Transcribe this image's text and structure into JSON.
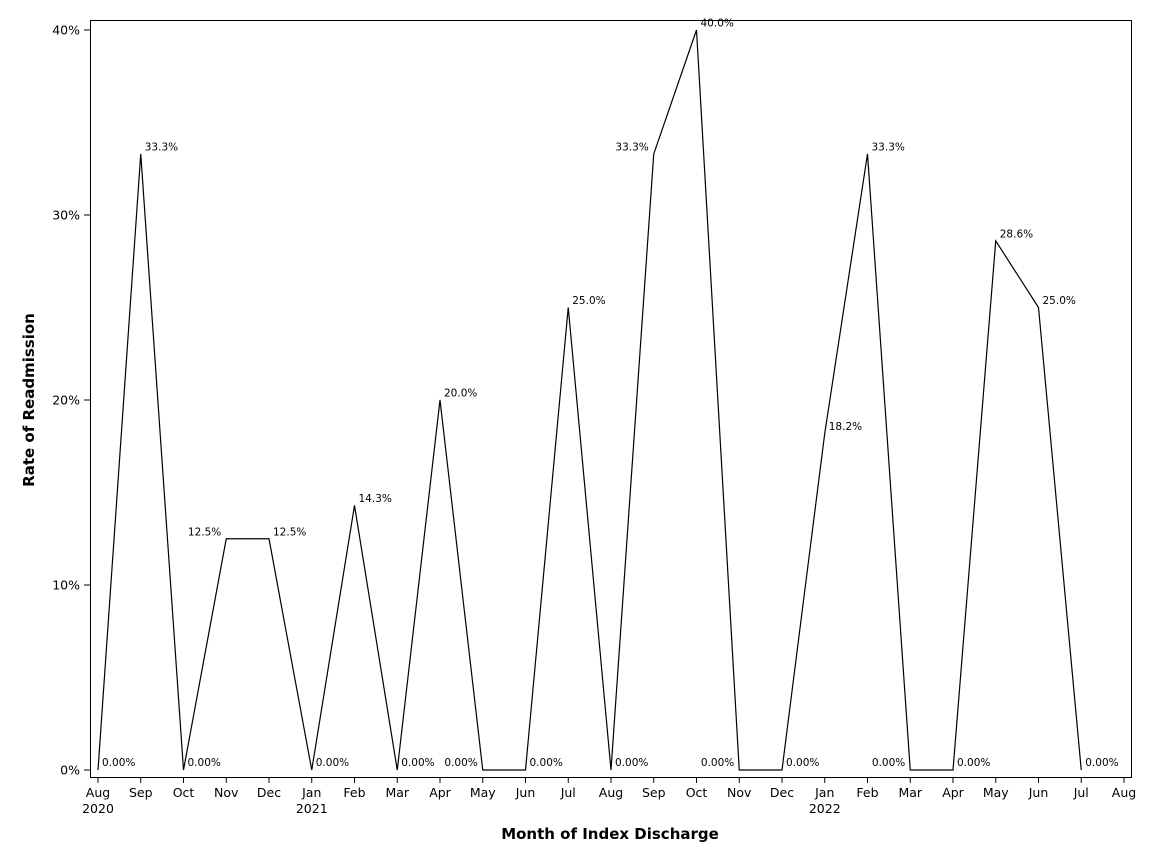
{
  "chart_data": {
    "type": "line",
    "xlabel": "Month of Index Discharge",
    "ylabel": "Rate of Readmission",
    "ylim": [
      0,
      40
    ],
    "y_ticks": [
      0,
      10,
      20,
      30,
      40
    ],
    "y_tick_labels": [
      "0%",
      "10%",
      "20%",
      "30%",
      "40%"
    ],
    "x_tick_labels": [
      {
        "month": "Aug",
        "year": "2020"
      },
      {
        "month": "Sep",
        "year": ""
      },
      {
        "month": "Oct",
        "year": ""
      },
      {
        "month": "Nov",
        "year": ""
      },
      {
        "month": "Dec",
        "year": ""
      },
      {
        "month": "Jan",
        "year": "2021"
      },
      {
        "month": "Feb",
        "year": ""
      },
      {
        "month": "Mar",
        "year": ""
      },
      {
        "month": "Apr",
        "year": ""
      },
      {
        "month": "May",
        "year": ""
      },
      {
        "month": "Jun",
        "year": ""
      },
      {
        "month": "Jul",
        "year": ""
      },
      {
        "month": "Aug",
        "year": ""
      },
      {
        "month": "Sep",
        "year": ""
      },
      {
        "month": "Oct",
        "year": ""
      },
      {
        "month": "Nov",
        "year": ""
      },
      {
        "month": "Dec",
        "year": ""
      },
      {
        "month": "Jan",
        "year": "2022"
      },
      {
        "month": "Feb",
        "year": ""
      },
      {
        "month": "Mar",
        "year": ""
      },
      {
        "month": "Apr",
        "year": ""
      },
      {
        "month": "May",
        "year": ""
      },
      {
        "month": "Jun",
        "year": ""
      },
      {
        "month": "Jul",
        "year": ""
      },
      {
        "month": "Aug",
        "year": ""
      }
    ],
    "series": [
      {
        "values": [
          0,
          33.3,
          0,
          12.5,
          12.5,
          0,
          14.3,
          0,
          20.0,
          0,
          0,
          25.0,
          0,
          33.3,
          40.0,
          0,
          0,
          18.2,
          33.3,
          0,
          0,
          28.6,
          25.0,
          0
        ],
        "labels": [
          "0.00%",
          "33.3%",
          "0.00%",
          "12.5%",
          "12.5%",
          "0.00%",
          "14.3%",
          "0.00%",
          "20.0%",
          "0.00%",
          "0.00%",
          "25.0%",
          "0.00%",
          "33.3%",
          "40.0%",
          "0.00%",
          "0.00%",
          "18.2%",
          "33.3%",
          "0.00%",
          "0.00%",
          "28.6%",
          "25.0%",
          "0.00%"
        ],
        "label_side": [
          "right",
          "right",
          "right",
          "left",
          "right",
          "right",
          "right",
          "right",
          "right",
          "left",
          "right",
          "right",
          "right",
          "left",
          "right",
          "left",
          "right",
          "right",
          "right",
          "left",
          "right",
          "right",
          "right",
          "right"
        ],
        "color": "#000000"
      }
    ],
    "grid": false,
    "legend": "none"
  }
}
